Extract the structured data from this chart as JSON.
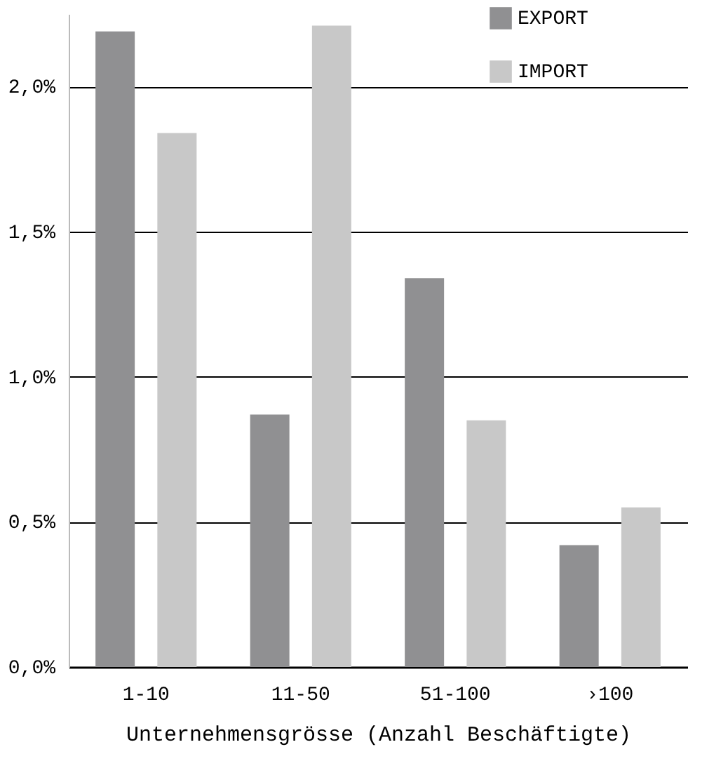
{
  "chart_data": {
    "type": "bar",
    "xlabel": "Unternehmensgrösse (Anzahl Beschäftigte)",
    "categories": [
      "1-10",
      "11-50",
      "51-100",
      "›100"
    ],
    "series": [
      {
        "name": "EXPORT",
        "color": "#909092",
        "values": [
          2.19,
          0.87,
          1.34,
          0.42
        ]
      },
      {
        "name": "IMPORT",
        "color": "#c8c8c8",
        "values": [
          1.84,
          2.21,
          0.85,
          0.55
        ]
      }
    ],
    "ylim": [
      0,
      2.25
    ],
    "yticks": [
      {
        "value": 0,
        "label": "0,0%"
      },
      {
        "value": 0.5,
        "label": "0,5%"
      },
      {
        "value": 1,
        "label": "1,0%"
      },
      {
        "value": 1.5,
        "label": "1,5%"
      },
      {
        "value": 2,
        "label": "2,0%"
      }
    ],
    "grid": "y",
    "legend": "top right"
  }
}
